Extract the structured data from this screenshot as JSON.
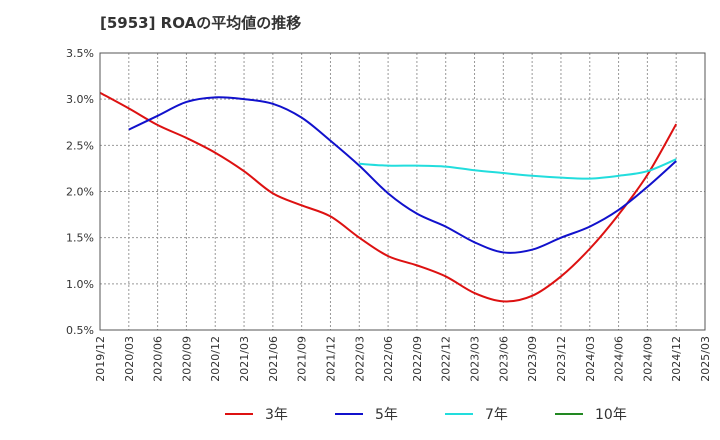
{
  "chart_data": {
    "type": "line",
    "title": "[5953]  ROAの平均値の推移",
    "xlabel": "",
    "ylabel": "",
    "y_tick_labels": [
      "0.5%",
      "1.0%",
      "1.5%",
      "2.0%",
      "2.5%",
      "3.0%",
      "3.5%"
    ],
    "ylim": [
      0.5,
      3.5
    ],
    "x_tick_labels": [
      "2019/12",
      "2020/03",
      "2020/06",
      "2020/09",
      "2020/12",
      "2021/03",
      "2021/06",
      "2021/09",
      "2021/12",
      "2022/03",
      "2022/06",
      "2022/09",
      "2022/12",
      "2023/03",
      "2023/06",
      "2023/09",
      "2023/12",
      "2024/03",
      "2024/06",
      "2024/09",
      "2024/12",
      "2025/03"
    ],
    "grid": true,
    "legend_position": "bottom",
    "series": [
      {
        "name": "3年",
        "color": "#dd1111",
        "x": [
          "2019/12",
          "2020/03",
          "2020/06",
          "2020/09",
          "2020/12",
          "2021/03",
          "2021/06",
          "2021/09",
          "2021/12",
          "2022/03",
          "2022/06",
          "2022/09",
          "2022/12",
          "2023/03",
          "2023/06",
          "2023/09",
          "2023/12",
          "2024/03",
          "2024/06",
          "2024/09",
          "2024/12"
        ],
        "values": [
          3.07,
          2.9,
          2.72,
          2.58,
          2.42,
          2.22,
          1.98,
          1.85,
          1.73,
          1.5,
          1.3,
          1.2,
          1.08,
          0.9,
          0.81,
          0.87,
          1.08,
          1.38,
          1.75,
          2.18,
          2.73
        ]
      },
      {
        "name": "5年",
        "color": "#1111cc",
        "x": [
          "2020/03",
          "2020/06",
          "2020/09",
          "2020/12",
          "2021/03",
          "2021/06",
          "2021/09",
          "2021/12",
          "2022/03",
          "2022/06",
          "2022/09",
          "2022/12",
          "2023/03",
          "2023/06",
          "2023/09",
          "2023/12",
          "2024/03",
          "2024/06",
          "2024/09",
          "2024/12"
        ],
        "values": [
          2.67,
          2.82,
          2.97,
          3.02,
          3.0,
          2.95,
          2.8,
          2.55,
          2.28,
          1.98,
          1.76,
          1.62,
          1.45,
          1.34,
          1.37,
          1.5,
          1.62,
          1.8,
          2.05,
          2.33
        ]
      },
      {
        "name": "7年",
        "color": "#22dddd",
        "x": [
          "2022/03",
          "2022/06",
          "2022/09",
          "2022/12",
          "2023/03",
          "2023/06",
          "2023/09",
          "2023/12",
          "2024/03",
          "2024/06",
          "2024/09",
          "2024/12"
        ],
        "values": [
          2.3,
          2.28,
          2.28,
          2.27,
          2.23,
          2.2,
          2.17,
          2.15,
          2.14,
          2.17,
          2.22,
          2.35
        ]
      },
      {
        "name": "10年",
        "color": "#228822",
        "x": [],
        "values": []
      }
    ]
  }
}
